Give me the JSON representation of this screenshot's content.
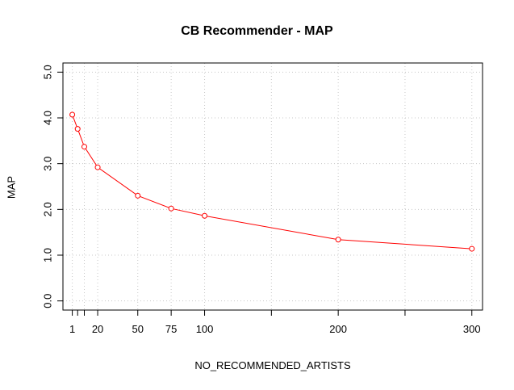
{
  "chart_data": {
    "type": "line",
    "title": "CB Recommender - MAP",
    "xlabel": "NO_RECOMMENDED_ARTISTS",
    "ylabel": "MAP",
    "x": [
      1,
      5,
      10,
      20,
      50,
      75,
      100,
      200,
      300
    ],
    "series": [
      {
        "values": [
          4.07,
          3.76,
          3.37,
          2.92,
          2.3,
          2.02,
          1.86,
          1.34,
          1.14
        ]
      }
    ],
    "xlim": [
      -6,
      308
    ],
    "ylim": [
      -0.2,
      5.2
    ],
    "xticks": [
      1,
      20,
      50,
      75,
      100,
      200,
      300
    ],
    "xticks_minor": [
      10,
      150,
      250
    ],
    "yticks": [
      "0.0",
      "1.0",
      "2.0",
      "3.0",
      "4.0",
      "5.0"
    ],
    "grid": true,
    "line_color": "#ff0000"
  }
}
